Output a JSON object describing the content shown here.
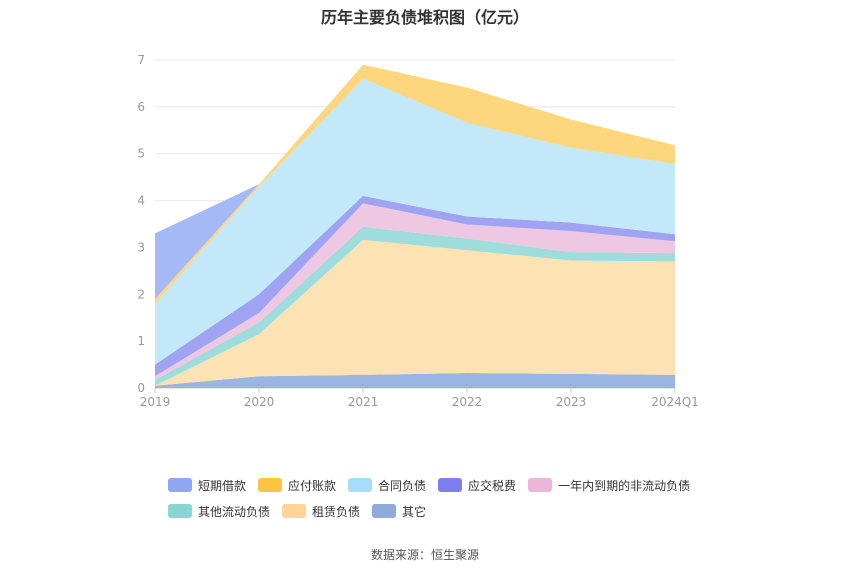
{
  "source": "数据来源：恒生聚源",
  "chart_data": {
    "type": "area",
    "stacked": true,
    "title": "历年主要负债堆积图（亿元）",
    "categories": [
      "2019",
      "2020",
      "2021",
      "2022",
      "2023",
      "2024Q1"
    ],
    "ylim": [
      0,
      7
    ],
    "yticks": [
      "0",
      "1",
      "2",
      "3",
      "4",
      "5",
      "6",
      "7"
    ],
    "grid": true,
    "legend_position": "bottom",
    "series": [
      {
        "name": "其它",
        "color": "#9bb5e3",
        "values": [
          0.05,
          0.25,
          0.28,
          0.32,
          0.3,
          0.28
        ]
      },
      {
        "name": "租赁负债",
        "color": "#fde2b3",
        "values": [
          0.0,
          0.9,
          2.88,
          2.62,
          2.42,
          2.42
        ]
      },
      {
        "name": "其他流动负债",
        "color": "#9fdcdc",
        "values": [
          0.12,
          0.25,
          0.28,
          0.25,
          0.18,
          0.18
        ]
      },
      {
        "name": "一年内到期的非流动负债",
        "color": "#eec8e3",
        "values": [
          0.08,
          0.2,
          0.5,
          0.3,
          0.45,
          0.25
        ]
      },
      {
        "name": "应交税费",
        "color": "#9fa3f2",
        "values": [
          0.25,
          0.4,
          0.16,
          0.17,
          0.18,
          0.15
        ]
      },
      {
        "name": "合同负债",
        "color": "#c2e8fa",
        "values": [
          1.3,
          2.3,
          2.5,
          2.0,
          1.6,
          1.5
        ]
      },
      {
        "name": "应付账款",
        "color": "#fed67e",
        "values": [
          0.1,
          0.05,
          0.3,
          0.75,
          0.6,
          0.4
        ]
      },
      {
        "name": "短期借款",
        "color": "#a4b9f5",
        "values": [
          1.4,
          0.0,
          0.0,
          0.0,
          0.0,
          0.0
        ]
      }
    ],
    "legend": [
      {
        "name": "短期借款",
        "color": "#8ea8f5"
      },
      {
        "name": "应付账款",
        "color": "#fbc443"
      },
      {
        "name": "合同负债",
        "color": "#a7def7"
      },
      {
        "name": "应交税费",
        "color": "#7b7ff0"
      },
      {
        "name": "一年内到期的非流动负债",
        "color": "#eab6d9"
      },
      {
        "name": "其他流动负债",
        "color": "#86d6d4"
      },
      {
        "name": "租赁负债",
        "color": "#fdd596"
      },
      {
        "name": "其它",
        "color": "#8fabdb"
      }
    ]
  }
}
